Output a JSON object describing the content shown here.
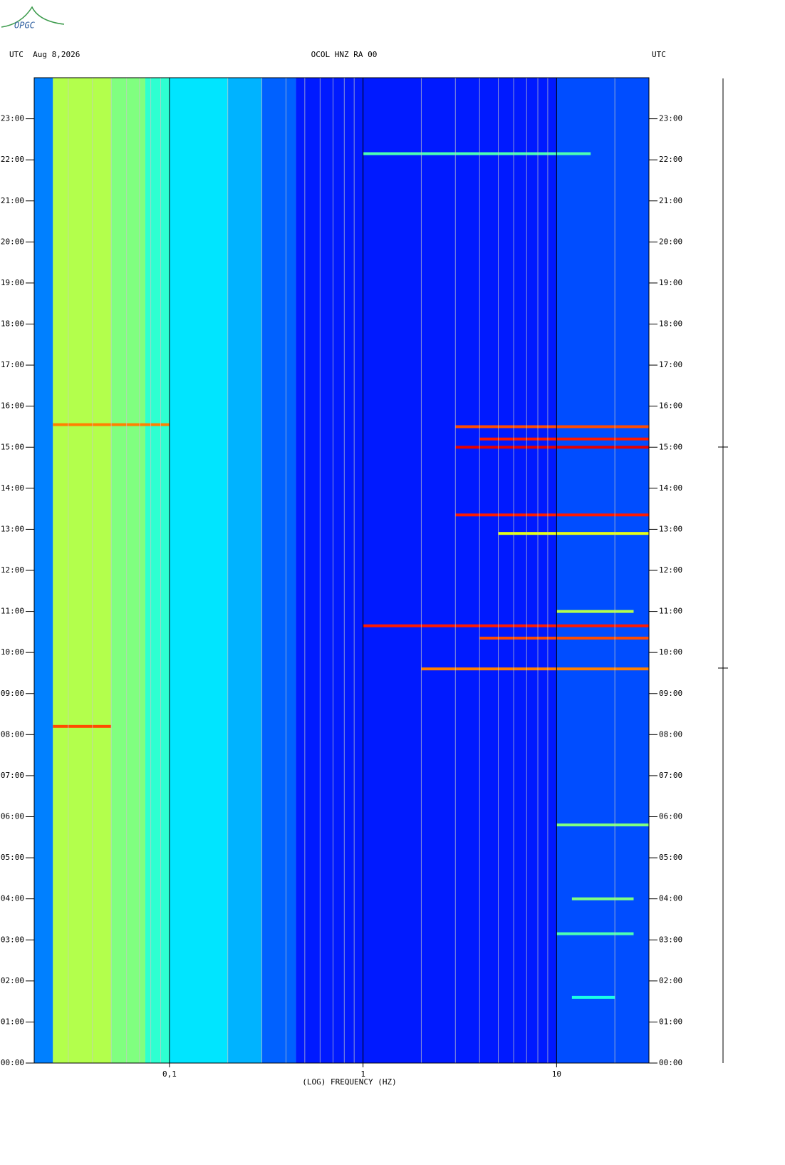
{
  "header": {
    "logo": "OPGC",
    "left": "UTC  Aug 8,2026",
    "center": "OCOL HNZ RA 00",
    "right": "UTC"
  },
  "chart_data": {
    "type": "spectrogram",
    "x_label": "(LOG) FREQUENCY (HZ)",
    "log_x": true,
    "xlim": [
      0.02,
      30
    ],
    "xticks": [
      {
        "value": 0.1,
        "label": "0,1"
      },
      1,
      10
    ],
    "minor_xticks": [
      0.03,
      0.04,
      0.05,
      0.06,
      0.07,
      0.08,
      0.09,
      0.2,
      0.3,
      0.4,
      0.5,
      0.6,
      0.7,
      0.8,
      0.9,
      2,
      3,
      4,
      5,
      6,
      7,
      8,
      9,
      20
    ],
    "ylim": [
      0,
      24
    ],
    "yticks": [
      {
        "value": 0,
        "label": "00:00"
      },
      {
        "value": 1,
        "label": "01:00"
      },
      {
        "value": 2,
        "label": "02:00"
      },
      {
        "value": 3,
        "label": "03:00"
      },
      {
        "value": 4,
        "label": "04:00"
      },
      {
        "value": 5,
        "label": "05:00"
      },
      {
        "value": 6,
        "label": "06:00"
      },
      {
        "value": 7,
        "label": "07:00"
      },
      {
        "value": 8,
        "label": "08:00"
      },
      {
        "value": 9,
        "label": "09:00"
      },
      {
        "value": 10,
        "label": "10:00"
      },
      {
        "value": 11,
        "label": "11:00"
      },
      {
        "value": 12,
        "label": "12:00"
      },
      {
        "value": 13,
        "label": "13:00"
      },
      {
        "value": 14,
        "label": "14:00"
      },
      {
        "value": 15,
        "label": "15:00"
      },
      {
        "value": 16,
        "label": "16:00"
      },
      {
        "value": 17,
        "label": "17:00"
      },
      {
        "value": 18,
        "label": "18:00"
      },
      {
        "value": 19,
        "label": "19:00"
      },
      {
        "value": 20,
        "label": "20:00"
      },
      {
        "value": 21,
        "label": "21:00"
      },
      {
        "value": 22,
        "label": "22:00"
      },
      {
        "value": 23,
        "label": "23:00"
      }
    ],
    "background": [
      {
        "fmin": 0.02,
        "fmax": 0.025,
        "level": 0.25
      },
      {
        "fmin": 0.025,
        "fmax": 0.05,
        "level": 0.55
      },
      {
        "fmin": 0.05,
        "fmax": 0.075,
        "level": 0.5
      },
      {
        "fmin": 0.075,
        "fmax": 0.1,
        "level": 0.42
      },
      {
        "fmin": 0.1,
        "fmax": 0.2,
        "level": 0.35
      },
      {
        "fmin": 0.2,
        "fmax": 0.3,
        "level": 0.3
      },
      {
        "fmin": 0.3,
        "fmax": 0.45,
        "level": 0.22
      },
      {
        "fmin": 0.45,
        "fmax": 10,
        "level": 0.15
      },
      {
        "fmin": 10,
        "fmax": 30,
        "level": 0.2
      }
    ],
    "events": [
      {
        "time": 22.15,
        "fmin": 1,
        "fmax": 15,
        "level": 0.45
      },
      {
        "time": 15.55,
        "fmin": 0.025,
        "fmax": 0.1,
        "level": 0.75
      },
      {
        "time": 15.5,
        "fmin": 3,
        "fmax": 30,
        "level": 0.8
      },
      {
        "time": 15.2,
        "fmin": 4,
        "fmax": 30,
        "level": 0.85
      },
      {
        "time": 15.0,
        "fmin": 3,
        "fmax": 30,
        "level": 0.9
      },
      {
        "time": 13.35,
        "fmin": 3,
        "fmax": 30,
        "level": 0.85
      },
      {
        "time": 12.9,
        "fmin": 5,
        "fmax": 30,
        "level": 0.6
      },
      {
        "time": 11.0,
        "fmin": 10,
        "fmax": 25,
        "level": 0.55
      },
      {
        "time": 10.65,
        "fmin": 1,
        "fmax": 30,
        "level": 0.85
      },
      {
        "time": 10.35,
        "fmin": 4,
        "fmax": 30,
        "level": 0.8
      },
      {
        "time": 9.6,
        "fmin": 2,
        "fmax": 30,
        "level": 0.75
      },
      {
        "time": 8.2,
        "fmin": 0.025,
        "fmax": 0.05,
        "level": 0.8
      },
      {
        "time": 5.8,
        "fmin": 10,
        "fmax": 30,
        "level": 0.5
      },
      {
        "time": 4.0,
        "fmin": 12,
        "fmax": 25,
        "level": 0.5
      },
      {
        "time": 3.15,
        "fmin": 10,
        "fmax": 25,
        "level": 0.45
      },
      {
        "time": 1.6,
        "fmin": 12,
        "fmax": 20,
        "level": 0.4
      }
    ]
  }
}
